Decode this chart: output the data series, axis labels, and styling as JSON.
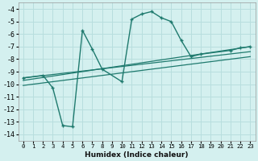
{
  "xlabel": "Humidex (Indice chaleur)",
  "background_color": "#d4f0ef",
  "grid_color": "#b8dede",
  "line_color": "#1f7a6e",
  "xlim": [
    -0.5,
    23.5
  ],
  "ylim": [
    -14.5,
    -3.5
  ],
  "yticks": [
    -14,
    -13,
    -12,
    -11,
    -10,
    -9,
    -8,
    -7,
    -6,
    -5,
    -4
  ],
  "xticks": [
    0,
    1,
    2,
    3,
    4,
    5,
    6,
    7,
    8,
    9,
    10,
    11,
    12,
    13,
    14,
    15,
    16,
    17,
    18,
    19,
    20,
    21,
    22,
    23
  ],
  "series1_x": [
    0,
    2,
    3,
    4,
    5,
    6,
    7,
    8,
    10,
    11,
    12,
    13,
    14,
    15,
    16,
    17,
    18,
    21,
    22,
    23
  ],
  "series1_y": [
    -9.5,
    -9.3,
    -10.3,
    -13.3,
    -13.4,
    -5.7,
    -7.2,
    -8.8,
    -9.8,
    -4.8,
    -4.4,
    -4.2,
    -4.7,
    -5.0,
    -6.5,
    -7.8,
    -7.6,
    -7.3,
    -7.1,
    -7.0
  ],
  "series2_x": [
    0,
    23
  ],
  "series2_y": [
    -9.7,
    -7.0
  ],
  "series3_x": [
    0,
    23
  ],
  "series3_y": [
    -9.5,
    -7.4
  ],
  "series4_x": [
    0,
    23
  ],
  "series4_y": [
    -10.1,
    -7.8
  ]
}
